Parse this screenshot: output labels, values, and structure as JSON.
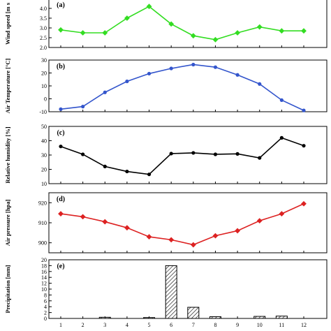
{
  "colors": {
    "wind": "#33dd22",
    "temperature": "#3355cc",
    "humidity": "#000000",
    "pressure": "#dd2222",
    "precipitation": "#000000"
  },
  "chart_data": [
    {
      "panel": "(a)",
      "type": "line",
      "ylabel": "Wind speed [m s",
      "x": [
        1,
        2,
        3,
        4,
        5,
        6,
        7,
        8,
        9,
        10,
        11,
        12
      ],
      "values": [
        2.9,
        2.75,
        2.75,
        3.5,
        4.1,
        3.2,
        2.6,
        2.4,
        2.75,
        3.05,
        2.85,
        2.85
      ],
      "ylim": [
        2.0,
        4.5
      ],
      "yticks": [
        "2.0",
        "2.5",
        "3.0",
        "3.5",
        "4.0"
      ],
      "ytick_values": [
        2.0,
        2.5,
        3.0,
        3.5,
        4.0
      ],
      "marker": "diamond",
      "color_key": "wind"
    },
    {
      "panel": "(b)",
      "type": "line",
      "ylabel": "Air Temperature [°C]",
      "x": [
        1,
        2,
        3,
        4,
        5,
        6,
        7,
        8,
        9,
        10,
        11,
        12
      ],
      "values": [
        -8,
        -6,
        5,
        13.5,
        19.5,
        23.5,
        26.5,
        24.5,
        18.5,
        11.5,
        -1,
        -9
      ],
      "ylim": [
        -10,
        30
      ],
      "yticks": [
        "-10",
        "0",
        "10",
        "20",
        "30"
      ],
      "ytick_values": [
        -10,
        0,
        10,
        20,
        30
      ],
      "marker": "circle",
      "color_key": "temperature"
    },
    {
      "panel": "(c)",
      "type": "line",
      "ylabel": "Relative humidity [%]",
      "x": [
        1,
        2,
        3,
        4,
        5,
        6,
        7,
        8,
        9,
        10,
        11,
        12
      ],
      "values": [
        36,
        30.5,
        22,
        18.5,
        16.5,
        31,
        31.5,
        30.5,
        30.8,
        28,
        42,
        36.5
      ],
      "ylim": [
        10,
        50
      ],
      "yticks": [
        "10",
        "20",
        "30",
        "40",
        "50"
      ],
      "ytick_values": [
        10,
        20,
        30,
        40,
        50
      ],
      "marker": "circle",
      "color_key": "humidity"
    },
    {
      "panel": "(d)",
      "type": "line",
      "ylabel": "Air pressure [hpa]",
      "x": [
        1,
        2,
        3,
        4,
        5,
        6,
        7,
        8,
        9,
        10,
        11,
        12
      ],
      "values": [
        914.5,
        913,
        910.5,
        907.5,
        903,
        901.5,
        899,
        903.5,
        906,
        911,
        914.5,
        919.5
      ],
      "ylim": [
        895,
        925
      ],
      "yticks": [
        "900",
        "910",
        "920"
      ],
      "ytick_values": [
        900,
        910,
        920
      ],
      "marker": "diamond",
      "color_key": "pressure"
    },
    {
      "panel": "(e)",
      "type": "bar",
      "ylabel": "Precipitation [mm]",
      "x": [
        1,
        2,
        3,
        4,
        5,
        6,
        7,
        8,
        9,
        10,
        11,
        12
      ],
      "values": [
        0,
        0,
        0.4,
        0,
        0.3,
        18,
        3.8,
        0.6,
        0,
        0.7,
        0.8,
        0
      ],
      "ylim": [
        0,
        20
      ],
      "yticks": [
        "0",
        "2",
        "4",
        "6",
        "8",
        "10",
        "12",
        "14",
        "16",
        "18",
        "20"
      ],
      "ytick_values": [
        0,
        2,
        4,
        6,
        8,
        10,
        12,
        14,
        16,
        18,
        20
      ],
      "xticks": [
        "1",
        "2",
        "3",
        "4",
        "5",
        "6",
        "7",
        "8",
        "9",
        "10",
        "11",
        "12"
      ],
      "color_key": "precipitation"
    }
  ]
}
